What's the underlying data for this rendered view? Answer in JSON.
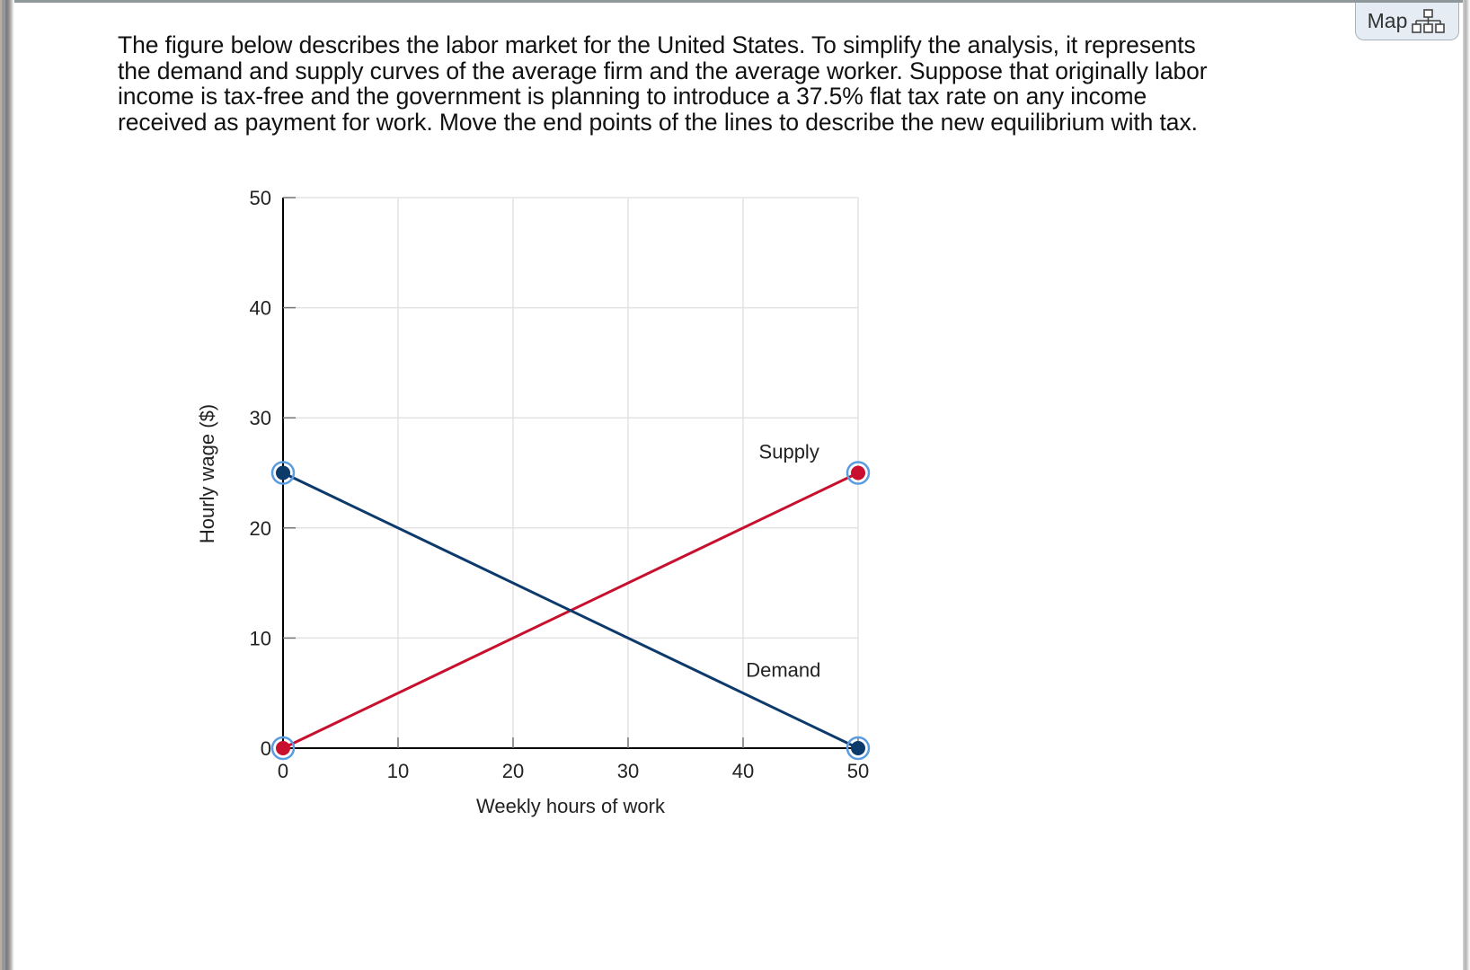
{
  "toolbar": {
    "map_label": "Map",
    "map_icon": "sitemap-icon"
  },
  "question": {
    "lines": [
      "The figure below describes the labor market for the United States. To simplify the analysis, it represents",
      "the demand and supply curves of the average firm and the average worker. Suppose that originally labor",
      "income is tax-free and the government is planning to introduce a 37.5% flat tax rate on any income",
      "received as payment for work. Move the end points of the lines to describe the new equilibrium with tax."
    ]
  },
  "colors": {
    "supply": "#c8102e",
    "demand": "#0c3a6b",
    "handle_ring": "#5b9be0",
    "grid": "#e3e3e3",
    "axis": "#000000"
  },
  "chart_data": {
    "type": "line",
    "title": "",
    "xlabel": "Weekly hours of work",
    "ylabel": "Hourly wage ($)",
    "xlim": [
      0,
      50
    ],
    "ylim": [
      0,
      50
    ],
    "xticks": [
      "0",
      "10",
      "20",
      "30",
      "40",
      "50"
    ],
    "yticks": [
      "0",
      "10",
      "20",
      "30",
      "40",
      "50"
    ],
    "grid": true,
    "legend": "none (inline labels)",
    "series": [
      {
        "name": "Supply",
        "color": "#c8102e",
        "points": [
          {
            "x": 0,
            "y": 0
          },
          {
            "x": 50,
            "y": 25
          }
        ],
        "draggable_endpoints": true
      },
      {
        "name": "Demand",
        "color": "#0c3a6b",
        "points": [
          {
            "x": 0,
            "y": 25
          },
          {
            "x": 50,
            "y": 0
          }
        ],
        "draggable_endpoints": true
      }
    ],
    "annotations": [
      {
        "text": "Supply",
        "x": 44,
        "y": 26.3
      },
      {
        "text": "Demand",
        "x": 43.5,
        "y": 6.5
      }
    ],
    "equilibrium": {
      "x": 25,
      "y": 12.5
    }
  }
}
